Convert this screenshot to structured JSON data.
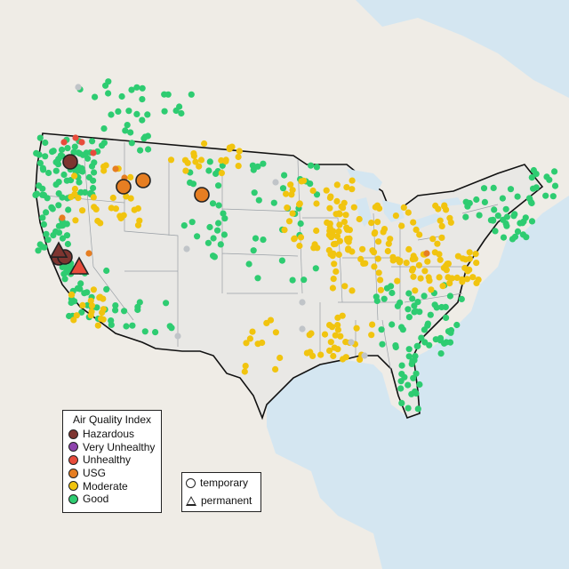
{
  "map": {
    "legend_aqi": {
      "title": "Air Quality Index",
      "items": [
        {
          "label": "Hazardous",
          "color": "#7e3530"
        },
        {
          "label": "Very Unhealthy",
          "color": "#8e44ad"
        },
        {
          "label": "Unhealthy",
          "color": "#e74c3c"
        },
        {
          "label": "USG",
          "color": "#e67e22"
        },
        {
          "label": "Moderate",
          "color": "#f1c40f"
        },
        {
          "label": "Good",
          "color": "#2ecc71"
        }
      ]
    },
    "legend_shape": {
      "items": [
        {
          "label": "temporary",
          "shape": "circle"
        },
        {
          "label": "permanent",
          "shape": "triangle"
        }
      ]
    },
    "colors": {
      "water": "#d4e6f1",
      "land": "#efece6",
      "usa": "#e9e8e5",
      "no_data": "#c0c4c8"
    }
  }
}
